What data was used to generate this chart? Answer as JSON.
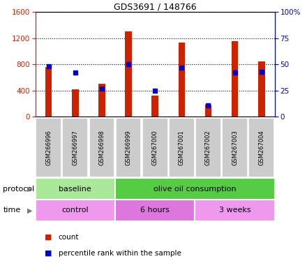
{
  "title": "GDS3691 / 148766",
  "samples": [
    "GSM266996",
    "GSM266997",
    "GSM266998",
    "GSM266999",
    "GSM267000",
    "GSM267001",
    "GSM267002",
    "GSM267003",
    "GSM267004"
  ],
  "counts": [
    760,
    420,
    500,
    1300,
    320,
    1130,
    180,
    1150,
    840
  ],
  "percentiles": [
    48,
    42,
    27,
    50,
    25,
    47,
    11,
    42,
    43
  ],
  "left_ylim": [
    0,
    1600
  ],
  "right_ylim": [
    0,
    100
  ],
  "left_yticks": [
    0,
    400,
    800,
    1200,
    1600
  ],
  "right_yticks": [
    0,
    25,
    50,
    75,
    100
  ],
  "right_yticklabels": [
    "0",
    "25",
    "50",
    "75",
    "100%"
  ],
  "bar_color": "#cc2200",
  "square_color": "#0000cc",
  "protocol_groups": [
    {
      "label": "baseline",
      "start": 0,
      "end": 3,
      "color": "#aae899"
    },
    {
      "label": "olive oil consumption",
      "start": 3,
      "end": 9,
      "color": "#55cc44"
    }
  ],
  "time_groups": [
    {
      "label": "control",
      "start": 0,
      "end": 3,
      "color": "#ee99ee"
    },
    {
      "label": "6 hours",
      "start": 3,
      "end": 6,
      "color": "#dd77dd"
    },
    {
      "label": "3 weeks",
      "start": 6,
      "end": 9,
      "color": "#ee99ee"
    }
  ],
  "legend_count_label": "count",
  "legend_pct_label": "percentile rank within the sample",
  "left_axis_color": "#cc2200",
  "right_axis_color": "#0000cc",
  "sample_bg_color": "#cccccc",
  "grid_color": "#000000"
}
